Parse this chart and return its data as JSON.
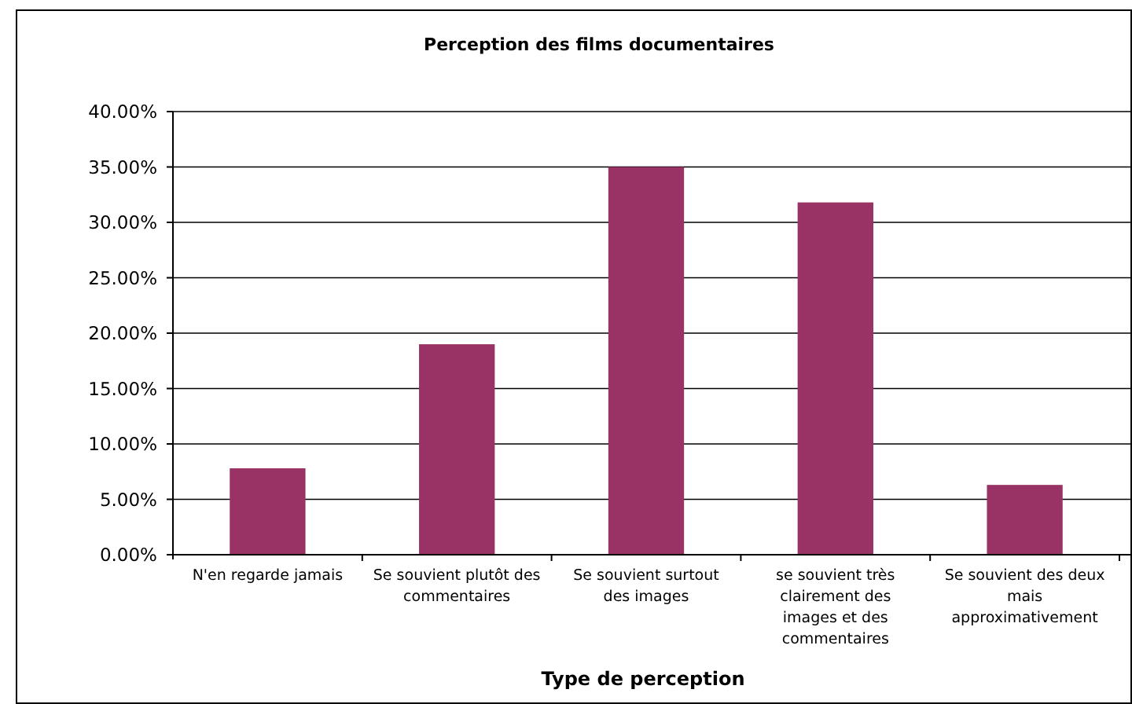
{
  "chart_data": {
    "type": "bar",
    "title": "Perception des films documentaires",
    "xlabel": "Type de perception",
    "categories": [
      "N'en regarde jamais",
      "Se souvient plutôt des commentaires",
      "Se souvient surtout des images",
      "se souvient très clairement des images et des commentaires",
      "Se souvient des deux mais approximativement"
    ],
    "values": [
      7.8,
      19.0,
      35.0,
      31.8,
      6.3
    ],
    "color": "#993366",
    "ylim": [
      0,
      40
    ],
    "yticks": [
      {
        "value": 0,
        "label": "0.00%"
      },
      {
        "value": 5,
        "label": "5.00%"
      },
      {
        "value": 10,
        "label": "10.00%"
      },
      {
        "value": 15,
        "label": "15.00%"
      },
      {
        "value": 20,
        "label": "20.00%"
      },
      {
        "value": 25,
        "label": "25.00%"
      },
      {
        "value": 30,
        "label": "30.00%"
      },
      {
        "value": 35,
        "label": "35.00%"
      },
      {
        "value": 40,
        "label": "40.00%"
      }
    ],
    "grid": "y"
  }
}
